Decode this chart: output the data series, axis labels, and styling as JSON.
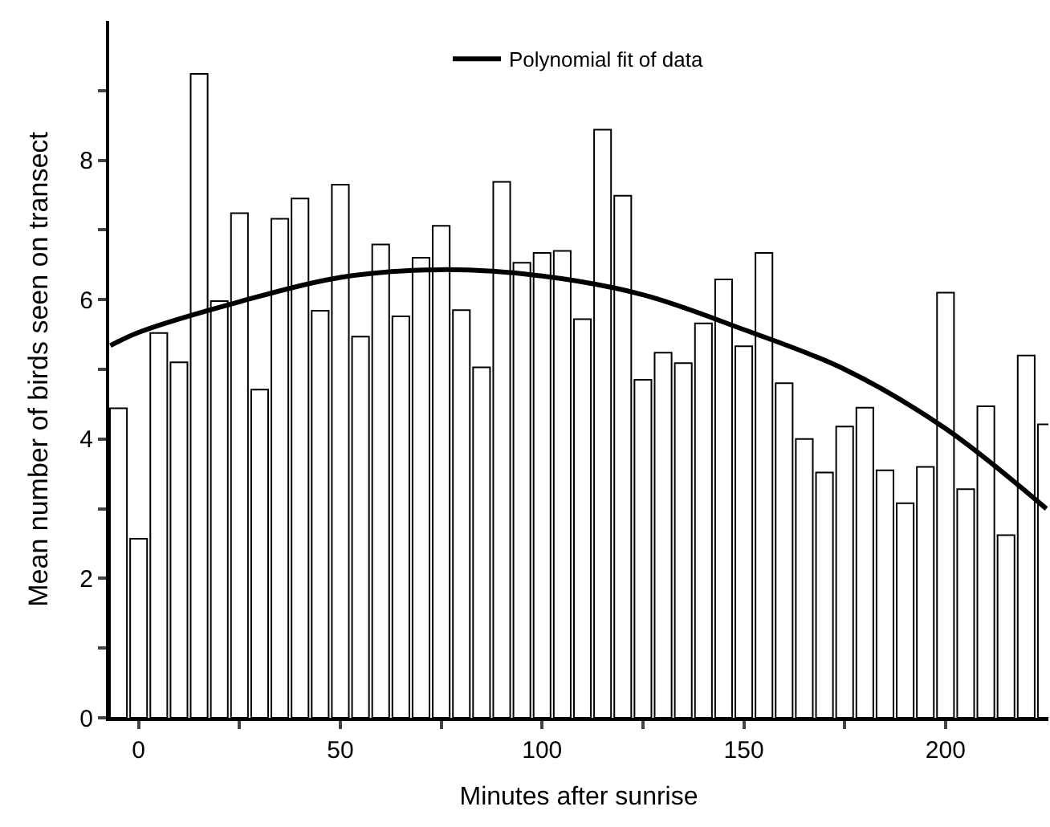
{
  "chart_data": {
    "type": "bar",
    "xlabel": "Minutes after sunrise",
    "ylabel": "Mean number of birds seen on transect",
    "x": [
      -5,
      0,
      5,
      10,
      15,
      20,
      25,
      30,
      35,
      40,
      45,
      50,
      55,
      60,
      65,
      70,
      75,
      80,
      85,
      90,
      95,
      100,
      105,
      110,
      115,
      120,
      125,
      130,
      135,
      140,
      145,
      150,
      155,
      160,
      165,
      170,
      175,
      180,
      185,
      190,
      195,
      200,
      205,
      210,
      215,
      220,
      225
    ],
    "series": [
      {
        "color": "#ffffff",
        "values": [
          4.44,
          2.57,
          5.52,
          5.1,
          9.24,
          5.98,
          7.24,
          4.71,
          7.16,
          7.45,
          5.84,
          7.65,
          5.47,
          6.79,
          5.76,
          6.6,
          7.06,
          5.85,
          5.03,
          7.69,
          6.53,
          6.67,
          6.7,
          5.72,
          8.44,
          7.49,
          4.85,
          5.24,
          5.09,
          5.66,
          6.29,
          5.33,
          6.67,
          4.8,
          4.0,
          3.52,
          4.18,
          4.45,
          3.55,
          3.08,
          3.6,
          6.1,
          3.28,
          4.47,
          2.62,
          5.2,
          4.21
        ]
      },
      {
        "type": "line",
        "name": "Polynomial fit of data",
        "color": "#000000",
        "x": [
          -7,
          0,
          25,
          50,
          75,
          100,
          125,
          150,
          175,
          200,
          225
        ],
        "values": [
          5.34,
          5.53,
          5.97,
          6.32,
          6.43,
          6.34,
          6.07,
          5.57,
          5.0,
          4.15,
          3.0
        ]
      }
    ],
    "xlim": [
      -7.3,
      225.5
    ],
    "xticks": [
      0,
      {
        "value": 25,
        "label": null
      },
      50,
      {
        "value": 75,
        "label": null
      },
      100,
      {
        "value": 125,
        "label": null
      },
      150,
      {
        "value": 175,
        "label": null
      },
      200
    ],
    "ylim": [
      0,
      10
    ],
    "yticks": [
      0,
      {
        "value": 1,
        "label": null
      },
      2,
      {
        "value": 3,
        "label": null
      },
      4,
      {
        "value": 5,
        "label": null
      },
      6,
      {
        "value": 7,
        "label": null
      },
      8,
      {
        "value": 9,
        "label": null
      }
    ],
    "legend": "top",
    "line_style": "solid",
    "marker": "none"
  }
}
